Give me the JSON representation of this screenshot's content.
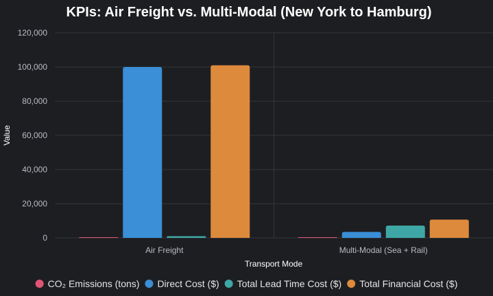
{
  "chart_data": {
    "type": "bar",
    "title": "KPIs: Air Freight vs. Multi-Modal (New York to Hamburg)",
    "xlabel": "Transport Mode",
    "ylabel": "Value",
    "categories": [
      "Air Freight",
      "Multi-Modal (Sea + Rail)"
    ],
    "ylim": [
      0,
      120000
    ],
    "yticks": [
      0,
      20000,
      40000,
      60000,
      80000,
      100000,
      120000
    ],
    "ytick_labels": [
      "0",
      "20,000",
      "40,000",
      "60,000",
      "80,000",
      "100,000",
      "120,000"
    ],
    "grid": true,
    "legend_position": "bottom",
    "series": [
      {
        "name": "CO₂ Emissions (tons)",
        "color": "#e05577",
        "values": [
          50,
          200
        ]
      },
      {
        "name": "Direct Cost ($)",
        "color": "#3a8fd6",
        "values": [
          100000,
          3500
        ]
      },
      {
        "name": "Total Lead Time Cost ($)",
        "color": "#3fa6a6",
        "values": [
          1000,
          7200
        ]
      },
      {
        "name": "Total Financial Cost ($)",
        "color": "#dd8a3c",
        "values": [
          101000,
          10700
        ]
      }
    ]
  }
}
